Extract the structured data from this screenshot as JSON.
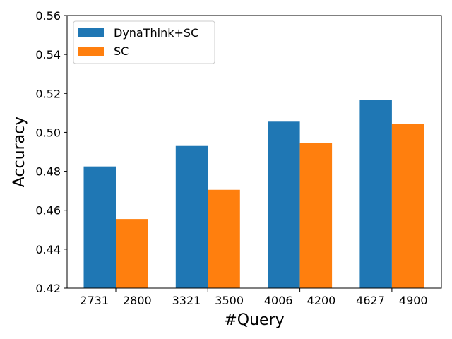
{
  "chart_data": {
    "type": "bar",
    "title": "",
    "xlabel": "#Query",
    "ylabel": "Accuracy",
    "ylim": [
      0.42,
      0.56
    ],
    "yticks": [
      "0.42",
      "0.44",
      "0.46",
      "0.48",
      "0.50",
      "0.52",
      "0.54",
      "0.56"
    ],
    "grid": false,
    "legend_position": "top-left",
    "groups": [
      {
        "labels": [
          "2731",
          "2800"
        ],
        "values": [
          0.4825,
          0.4555
        ]
      },
      {
        "labels": [
          "3321",
          "3500"
        ],
        "values": [
          0.493,
          0.4705
        ]
      },
      {
        "labels": [
          "4006",
          "4200"
        ],
        "values": [
          0.5055,
          0.4945
        ]
      },
      {
        "labels": [
          "4627",
          "4900"
        ],
        "values": [
          0.5165,
          0.5045
        ]
      }
    ],
    "series": [
      {
        "name": "DynaThink+SC",
        "color": "#1f77b4",
        "values": [
          0.4825,
          0.493,
          0.5055,
          0.5165
        ]
      },
      {
        "name": "SC",
        "color": "#ff7f0e",
        "values": [
          0.4555,
          0.4705,
          0.4945,
          0.5045
        ]
      }
    ]
  }
}
